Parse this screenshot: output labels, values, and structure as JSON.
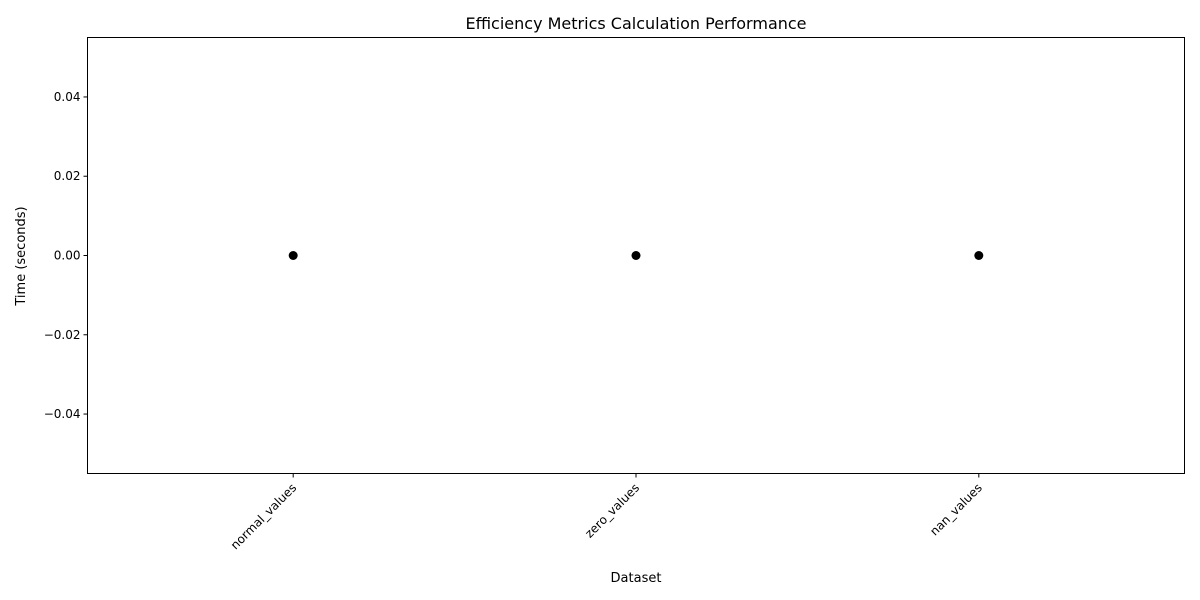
{
  "chart_data": {
    "type": "scatter",
    "title": "Efficiency Metrics Calculation Performance",
    "xlabel": "Dataset",
    "ylabel": "Time (seconds)",
    "categories": [
      "normal_values",
      "zero_values",
      "nan_values"
    ],
    "values": [
      0.0,
      0.0,
      0.0
    ],
    "ylim": [
      -0.055,
      0.055
    ],
    "yticks": [
      -0.04,
      -0.02,
      0.0,
      0.02,
      0.04
    ],
    "ytick_labels": [
      "−0.04",
      "−0.02",
      "0.00",
      "0.02",
      "0.04"
    ],
    "grid": false,
    "marker_color": "#000000"
  }
}
